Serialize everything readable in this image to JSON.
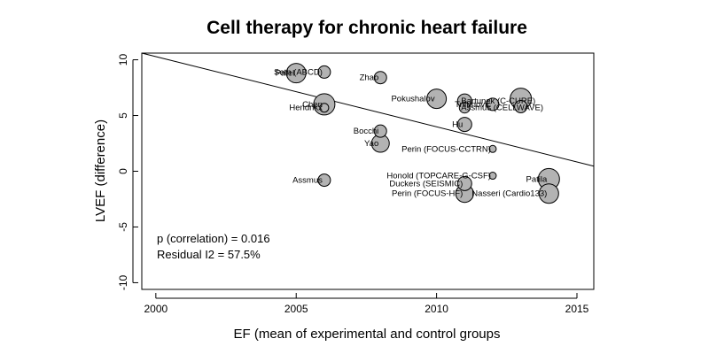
{
  "chart_data": {
    "type": "scatter",
    "title": "Cell therapy for chronic heart failure",
    "xlabel": "EF (mean of experimental and control groups",
    "ylabel": "LVEF (difference)",
    "xlim": [
      1999.5,
      2015.6
    ],
    "ylim": [
      -10.6,
      10.6
    ],
    "xticks": [
      2000,
      2005,
      2010,
      2015
    ],
    "yticks": [
      -10,
      -5,
      0,
      5,
      10
    ],
    "grid": false,
    "marker_fill": "#b3b3b3",
    "marker_edge": "#000000",
    "regression_line": {
      "intercept_at_x_min": 10.6,
      "slope": -0.63
    },
    "annotations": [
      "p (correlation) = 0.016",
      "Residual I2 = 57.5%"
    ],
    "points": [
      {
        "label": "Patel",
        "x": 2005.0,
        "y": 8.8,
        "r": 11,
        "anchor": "end"
      },
      {
        "label": "Seth (ABCD)",
        "x": 2006.0,
        "y": 8.9,
        "r": 7,
        "anchor": "end"
      },
      {
        "label": "Zhao",
        "x": 2008.0,
        "y": 8.4,
        "r": 7,
        "anchor": "end"
      },
      {
        "label": "Chen",
        "x": 2006.0,
        "y": 6.0,
        "r": 12,
        "anchor": "end"
      },
      {
        "label": "Hendrikx",
        "x": 2006.0,
        "y": 5.7,
        "r": 5,
        "anchor": "end"
      },
      {
        "label": "Pokushalov",
        "x": 2010.0,
        "y": 6.5,
        "r": 11,
        "anchor": "end"
      },
      {
        "label": "Bartunek (C-CURE)",
        "x": 2011.0,
        "y": 6.3,
        "r": 8,
        "anchor": "start"
      },
      {
        "label": "Trifunovic",
        "x": 2012.0,
        "y": 6.0,
        "r": 7,
        "anchor": "end"
      },
      {
        "label": "Assmus (CELLWAVE)",
        "x": 2011.0,
        "y": 5.7,
        "r": 6,
        "anchor": "start"
      },
      {
        "label": "",
        "x": 2013.0,
        "y": 6.5,
        "r": 12,
        "anchor": "end"
      },
      {
        "label": "",
        "x": 2013.0,
        "y": 5.8,
        "r": 7,
        "anchor": "end"
      },
      {
        "label": "Hu",
        "x": 2011.0,
        "y": 4.2,
        "r": 8,
        "anchor": "end"
      },
      {
        "label": "Bocchi",
        "x": 2008.0,
        "y": 3.6,
        "r": 7,
        "anchor": "end"
      },
      {
        "label": "Yao",
        "x": 2008.0,
        "y": 2.5,
        "r": 10,
        "anchor": "end"
      },
      {
        "label": "Perin (FOCUS-CCTRN)",
        "x": 2012.0,
        "y": 2.0,
        "r": 4,
        "anchor": "end"
      },
      {
        "label": "Honold (TOPCARE-G-CSF)",
        "x": 2012.0,
        "y": -0.4,
        "r": 4,
        "anchor": "end"
      },
      {
        "label": "Assmus",
        "x": 2006.0,
        "y": -0.8,
        "r": 7,
        "anchor": "end"
      },
      {
        "label": "Duckers (SEISMIC)",
        "x": 2011.0,
        "y": -1.1,
        "r": 8,
        "anchor": "end"
      },
      {
        "label": "Patila",
        "x": 2014.0,
        "y": -0.7,
        "r": 12,
        "anchor": "end"
      },
      {
        "label": "Perin (FOCUS-HF)",
        "x": 2011.0,
        "y": -2.0,
        "r": 10,
        "anchor": "end"
      },
      {
        "label": "Nasseri (Cardio133)",
        "x": 2014.0,
        "y": -2.0,
        "r": 11,
        "anchor": "end"
      }
    ]
  }
}
